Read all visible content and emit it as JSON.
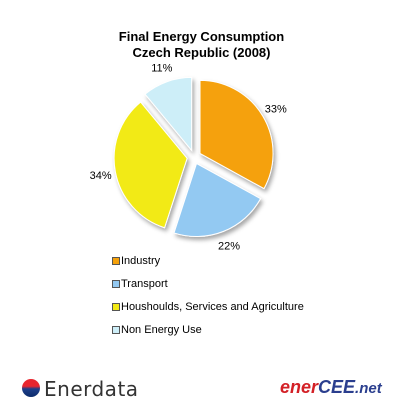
{
  "chart_data": {
    "type": "pie",
    "title_line1": "Final Energy Consumption",
    "title_line2": "Czech Republic (2008)",
    "slices": [
      {
        "label": "Industry",
        "value": 33,
        "value_label": "33%",
        "color": "#f5a10a"
      },
      {
        "label": "Transport",
        "value": 22,
        "value_label": "22%",
        "color": "#93c9f2"
      },
      {
        "label": "Houshoulds, Services and Agriculture",
        "value": 34,
        "value_label": "34%",
        "color": "#f2ea14"
      },
      {
        "label": "Non Energy Use",
        "value": 11,
        "value_label": "11%",
        "color": "#cdeef8"
      }
    ],
    "legend_placement": "bottom"
  },
  "footer": {
    "left_logo_text": "Enerdata",
    "right_logo_ener": "ener",
    "right_logo_cee": "CEE",
    "right_logo_net": ".net"
  }
}
